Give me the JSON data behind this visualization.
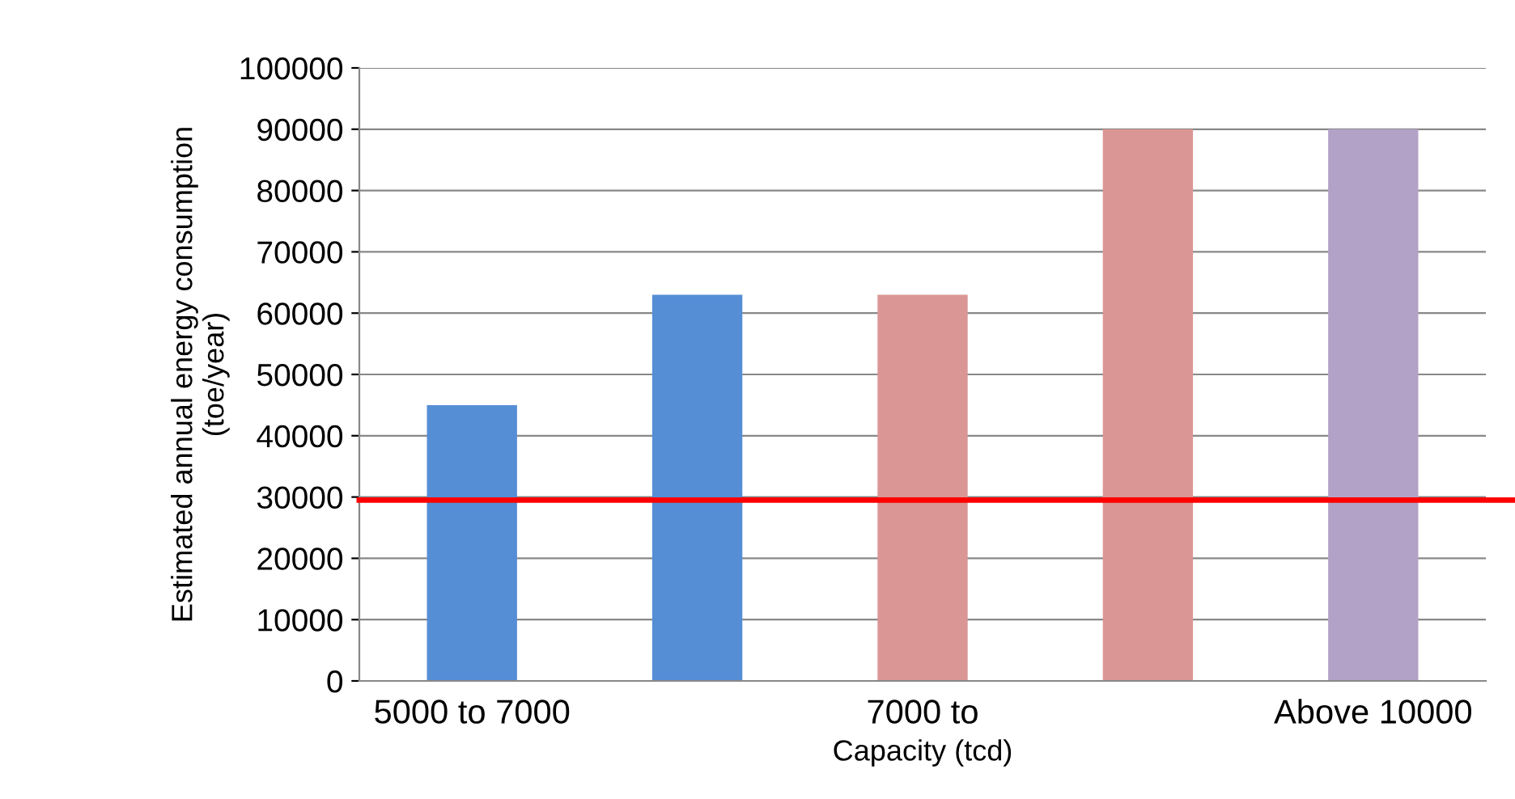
{
  "chart_data": {
    "type": "bar",
    "xlabel": "Capacity (tcd)",
    "ylabel": "Estimated annual energy consumption\n(toe/year)",
    "categories": [
      "5000 to 7000",
      null,
      "7000 to",
      null,
      "Above 10000"
    ],
    "values": [
      45000,
      63000,
      63000,
      90000,
      90000
    ],
    "colors": [
      "#558ed5",
      "#558ed5",
      "#d99694",
      "#d99694",
      "#b3a2c7"
    ],
    "ylim": [
      0,
      100000
    ],
    "yticks": [
      0,
      10000,
      20000,
      30000,
      40000,
      50000,
      60000,
      70000,
      80000,
      90000,
      100000
    ],
    "grid": "y",
    "ref_lines": [
      {
        "axis": "y",
        "value": 29500,
        "color": "#ff0000"
      }
    ]
  }
}
